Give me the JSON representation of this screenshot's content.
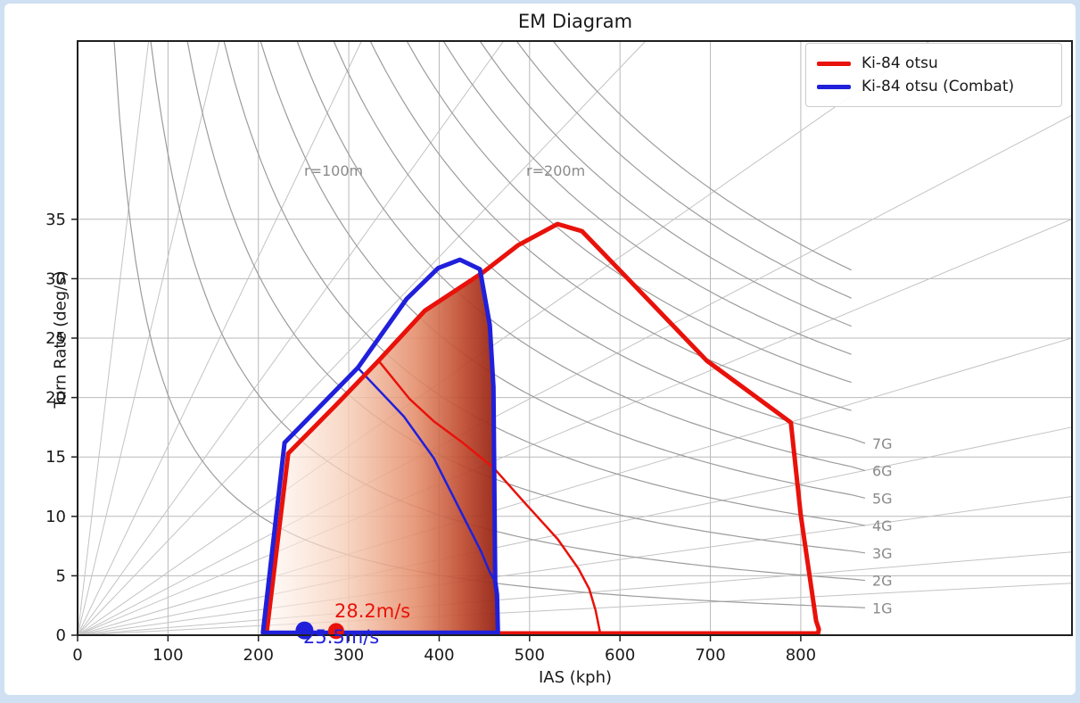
{
  "chart_data": {
    "type": "line",
    "title": "EM Diagram",
    "xlabel": "IAS (kph)",
    "ylabel": "Turn Rate (deg/s)",
    "xlim": [
      0,
      1100
    ],
    "ylim": [
      0,
      50
    ],
    "x_ticks": [
      0,
      100,
      200,
      300,
      400,
      500,
      600,
      700,
      800
    ],
    "y_ticks": [
      0,
      5,
      10,
      15,
      20,
      25,
      30,
      35
    ],
    "grid": true,
    "colors": {
      "red": "#e8120b",
      "blue": "#2020db",
      "grid": "#b9b9b9",
      "g_curve": "#9c9c9c",
      "radius_line": "#c3c3c3",
      "curve_label": "#8a8a8a",
      "spine": "#1f1f1f"
    },
    "legend": {
      "position": "upper right",
      "entries": [
        {
          "label": "Ki-84 otsu",
          "color": "#e8120b"
        },
        {
          "label": "Ki-84 otsu (Combat)",
          "color": "#2020db"
        }
      ]
    },
    "series": [
      {
        "name": "Ki-84 otsu max-performance envelope",
        "color": "#e8120b",
        "width": 5,
        "closed": true,
        "points": [
          [
            209,
            0.15
          ],
          [
            233,
            15.3
          ],
          [
            285,
            19.3
          ],
          [
            333,
            23.1
          ],
          [
            384,
            27.3
          ],
          [
            448,
            30.5
          ],
          [
            487,
            32.8
          ],
          [
            531,
            34.6
          ],
          [
            558,
            34.0
          ],
          [
            610,
            29.9
          ],
          [
            696,
            23.1
          ],
          [
            789,
            17.9
          ],
          [
            800,
            10.1
          ],
          [
            812,
            3.8
          ],
          [
            817,
            1.2
          ],
          [
            820,
            0.5
          ],
          [
            819,
            0.15
          ]
        ]
      },
      {
        "name": "Ki-84 otsu (Combat) envelope",
        "color": "#2020db",
        "width": 5,
        "closed": true,
        "points": [
          [
            205,
            0.2
          ],
          [
            229,
            16.2
          ],
          [
            270,
            19.4
          ],
          [
            310,
            22.5
          ],
          [
            364,
            28.3
          ],
          [
            399,
            30.9
          ],
          [
            423,
            31.6
          ],
          [
            445,
            30.8
          ],
          [
            456,
            26.1
          ],
          [
            460,
            20.9
          ],
          [
            462,
            4.5
          ],
          [
            464,
            3.4
          ],
          [
            465,
            0.2
          ]
        ]
      },
      {
        "name": "Ki-84 otsu sustained turn line",
        "color": "#e8120b",
        "width": 2.5,
        "closed": false,
        "points": [
          [
            333,
            23.1
          ],
          [
            367,
            19.9
          ],
          [
            394,
            18.0
          ],
          [
            426,
            16.2
          ],
          [
            460,
            14.1
          ],
          [
            495,
            11.1
          ],
          [
            531,
            8.1
          ],
          [
            554,
            5.6
          ],
          [
            566,
            3.9
          ],
          [
            573,
            2.1
          ],
          [
            578,
            0.2
          ]
        ]
      },
      {
        "name": "Ki-84 otsu (Combat) sustained turn line",
        "color": "#2020db",
        "width": 2.5,
        "closed": false,
        "points": [
          [
            310,
            22.5
          ],
          [
            361,
            18.4
          ],
          [
            394,
            14.9
          ],
          [
            426,
            10.1
          ],
          [
            446,
            7.1
          ],
          [
            456,
            5.3
          ],
          [
            462,
            4.5
          ]
        ]
      }
    ],
    "overlap_fill": {
      "points": [
        [
          209,
          0.15
        ],
        [
          233,
          15.3
        ],
        [
          285,
          19.3
        ],
        [
          333,
          23.1
        ],
        [
          384,
          27.3
        ],
        [
          448,
          30.5
        ],
        [
          456,
          26.1
        ],
        [
          460,
          20.9
        ],
        [
          462,
          4.5
        ],
        [
          464,
          3.4
        ],
        [
          465,
          0.15
        ]
      ],
      "gradient": [
        {
          "offset": 0.0,
          "color": "rgba(255,246,241,0.50)"
        },
        {
          "offset": 0.35,
          "color": "rgba(246,205,182,0.80)"
        },
        {
          "offset": 0.65,
          "color": "rgba(228,140,105,0.88)"
        },
        {
          "offset": 0.85,
          "color": "rgba(190,75,48,0.93)"
        },
        {
          "offset": 1.0,
          "color": "rgba(148,33,18,0.95)"
        }
      ]
    },
    "g_curves": {
      "formula": "turn_rate_deg_s = coefficient * n / v_kph",
      "coefficient": 2023.4,
      "labeled": [
        1,
        2,
        3,
        4,
        5,
        6,
        7
      ],
      "labels": [
        "1G",
        "2G",
        "3G",
        "4G",
        "5G",
        "6G",
        "7G"
      ],
      "unlabeled": [
        8,
        9,
        10,
        11,
        12,
        13
      ],
      "v_end_kph": 856,
      "label_v_kph": 877
    },
    "radius_lines": {
      "formula": "turn_rate_deg_s = 15.915 * v_kph / r_m",
      "values_m": [
        25,
        50,
        100,
        150,
        200,
        300,
        400,
        500,
        700,
        1000,
        1500,
        2500,
        4000
      ],
      "labeled": [
        {
          "r": 100,
          "label": "r=100m"
        },
        {
          "r": 200,
          "label": "r=200m"
        }
      ],
      "label_turn_rate": 39.1
    },
    "markers": [
      {
        "name": "combat-best-climb-point",
        "x": 251,
        "y": 0.4,
        "r": 10,
        "color": "#2020db"
      },
      {
        "name": "military-best-climb-point",
        "x": 286,
        "y": 0.35,
        "r": 9,
        "color": "#e8120b"
      }
    ],
    "annotations": [
      {
        "text": "28.2m/s",
        "color": "#e8120b"
      },
      {
        "text": "25.5m/s",
        "color": "#2020db"
      }
    ]
  }
}
